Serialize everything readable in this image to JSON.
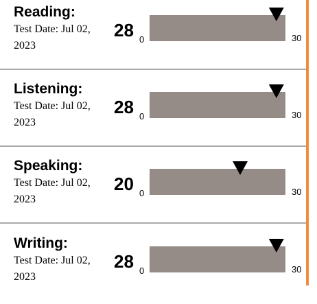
{
  "sections": [
    {
      "name": "Reading:",
      "test_date": "Test Date: Jul 02, 2023",
      "score": 28,
      "scale_min": 0,
      "scale_max": 30
    },
    {
      "name": "Listening:",
      "test_date": "Test Date: Jul 02, 2023",
      "score": 28,
      "scale_min": 0,
      "scale_max": 30
    },
    {
      "name": "Speaking:",
      "test_date": "Test Date: Jul 02, 2023",
      "score": 20,
      "scale_min": 0,
      "scale_max": 30
    },
    {
      "name": "Writing:",
      "test_date": "Test Date: Jul 02, 2023",
      "score": 28,
      "scale_min": 0,
      "scale_max": 30
    }
  ]
}
